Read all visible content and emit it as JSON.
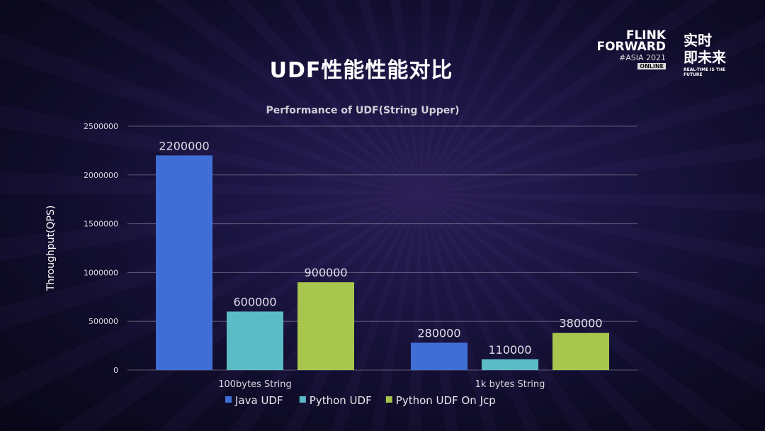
{
  "slide_title": "UDF性能性能对比",
  "logo": {
    "line1": "FLINK",
    "line2": "FORWARD",
    "line3": "#ASIA 2021",
    "badge": "ONLINE",
    "cn1": "实时",
    "cn2": "即未来",
    "tagline": "REAL-TIME IS THE FUTURE"
  },
  "chart_data": {
    "type": "bar",
    "title": "Performance of UDF(String Upper)",
    "xlabel": "",
    "ylabel": "Throughput(QPS)",
    "ylim": [
      0,
      2500000
    ],
    "yticks": [
      "0",
      "500000",
      "1000000",
      "1500000",
      "2000000",
      "2500000"
    ],
    "categories": [
      "100bytes String",
      "1k bytes String"
    ],
    "series": [
      {
        "name": "Java UDF",
        "color": "#3f6fd6",
        "values": [
          2200000,
          280000
        ]
      },
      {
        "name": "Python UDF",
        "color": "#5bbcc6",
        "values": [
          600000,
          110000
        ]
      },
      {
        "name": "Python UDF On Jcp",
        "color": "#a8c64e",
        "values": [
          900000,
          380000
        ]
      }
    ],
    "grid": true,
    "legend": "bottom"
  }
}
